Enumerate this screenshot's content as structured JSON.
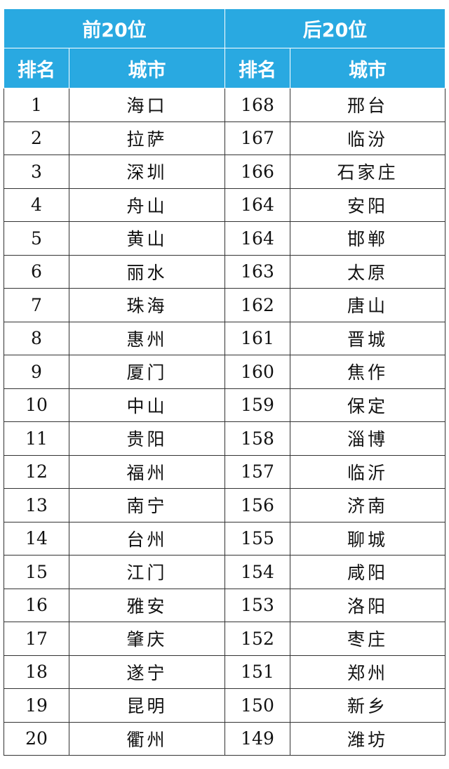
{
  "table": {
    "header_groups": [
      "前20位",
      "后20位"
    ],
    "columns": [
      "排名",
      "城市",
      "排名",
      "城市"
    ],
    "rows": [
      [
        1,
        "海口",
        168,
        "邢台"
      ],
      [
        2,
        "拉萨",
        167,
        "临汾"
      ],
      [
        3,
        "深圳",
        166,
        "石家庄"
      ],
      [
        4,
        "舟山",
        164,
        "安阳"
      ],
      [
        5,
        "黄山",
        164,
        "邯郸"
      ],
      [
        6,
        "丽水",
        163,
        "太原"
      ],
      [
        7,
        "珠海",
        162,
        "唐山"
      ],
      [
        8,
        "惠州",
        161,
        "晋城"
      ],
      [
        9,
        "厦门",
        160,
        "焦作"
      ],
      [
        10,
        "中山",
        159,
        "保定"
      ],
      [
        11,
        "贵阳",
        158,
        "淄博"
      ],
      [
        12,
        "福州",
        157,
        "临沂"
      ],
      [
        13,
        "南宁",
        156,
        "济南"
      ],
      [
        14,
        "台州",
        155,
        "聊城"
      ],
      [
        15,
        "江门",
        154,
        "咸阳"
      ],
      [
        16,
        "雅安",
        153,
        "洛阳"
      ],
      [
        17,
        "肇庆",
        152,
        "枣庄"
      ],
      [
        18,
        "遂宁",
        151,
        "郑州"
      ],
      [
        19,
        "昆明",
        150,
        "新乡"
      ],
      [
        20,
        "衢州",
        149,
        "潍坊"
      ]
    ]
  }
}
